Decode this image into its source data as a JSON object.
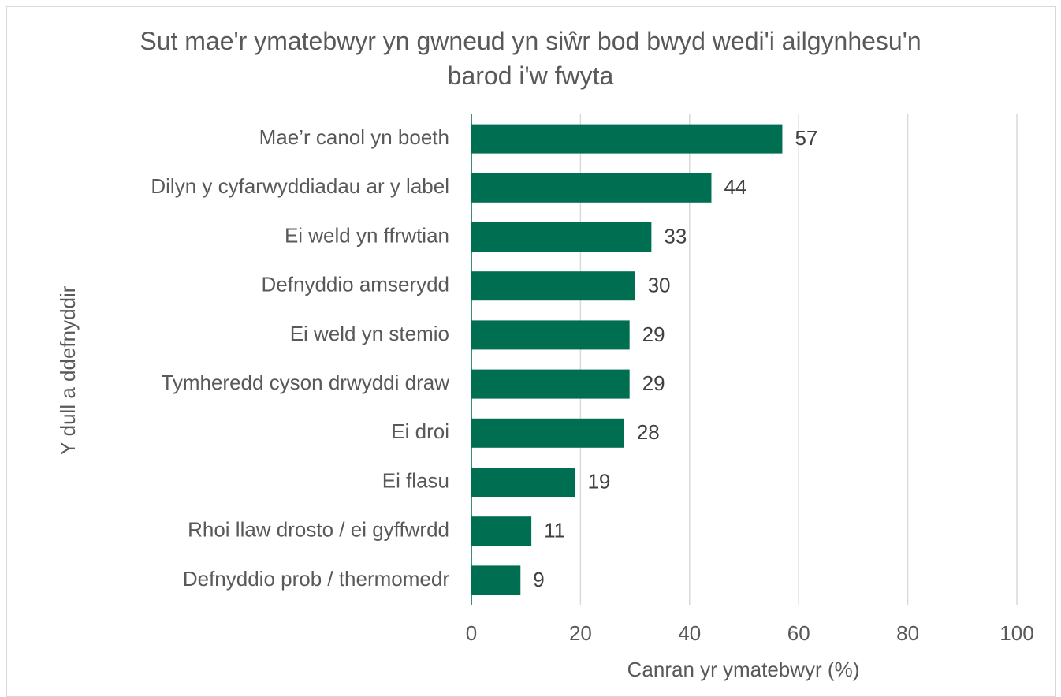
{
  "chart_data": {
    "type": "bar",
    "orientation": "horizontal",
    "title": "Sut mae'r ymatebwyr yn gwneud yn siŵr bod bwyd wedi'i ailgynhesu'n barod i'w fwyta",
    "xlabel": "Canran yr ymatebwyr (%)",
    "ylabel": "Y dull a ddefnyddir",
    "categories": [
      "Mae’r canol yn boeth",
      "Dilyn y cyfarwyddiadau ar y label",
      "Ei weld yn ffrwtian",
      "Defnyddio amserydd",
      "Ei weld yn stemio",
      "Tymheredd cyson drwyddi draw",
      "Ei droi",
      "Ei flasu",
      "Rhoi llaw drosto / ei gyffwrdd",
      "Defnyddio prob / thermomedr"
    ],
    "values": [
      57,
      44,
      33,
      30,
      29,
      29,
      28,
      19,
      11,
      9
    ],
    "color": "#006e51",
    "xlim": [
      0,
      100
    ],
    "xticks": [
      0,
      20,
      40,
      60,
      80,
      100
    ],
    "grid": true
  }
}
